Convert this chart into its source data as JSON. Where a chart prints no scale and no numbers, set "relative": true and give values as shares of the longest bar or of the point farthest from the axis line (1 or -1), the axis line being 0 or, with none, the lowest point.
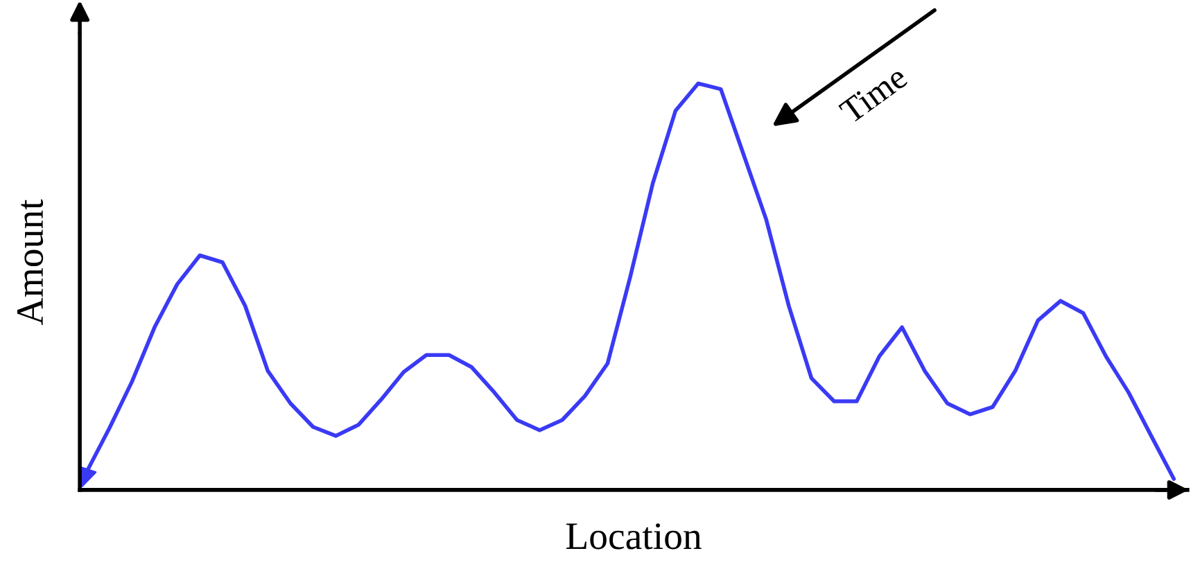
{
  "chart_data": {
    "type": "line",
    "relative": true,
    "xlabel": "Location",
    "ylabel": "Amount",
    "annotations": [
      "Time"
    ],
    "categories": [
      null,
      null,
      null,
      null,
      null,
      null,
      null,
      null,
      null,
      null,
      null,
      null,
      null,
      null,
      null,
      null,
      null,
      null,
      null,
      null,
      null,
      null,
      null,
      null,
      null,
      null,
      null,
      null,
      null,
      null,
      null,
      null,
      null,
      null,
      null,
      null,
      null,
      null,
      null,
      null,
      null,
      null,
      null,
      null,
      null,
      null,
      null,
      null,
      null
    ],
    "series": [
      {
        "color": "#3a3af5",
        "values": [
          0.044,
          0.151,
          0.266,
          0.4,
          0.506,
          0.577,
          0.56,
          0.453,
          0.293,
          0.213,
          0.155,
          0.133,
          0.16,
          0.222,
          0.29,
          0.332,
          0.332,
          0.302,
          0.24,
          0.172,
          0.147,
          0.172,
          0.231,
          0.311,
          0.524,
          0.755,
          0.933,
          1.0,
          0.986,
          0.826,
          0.666,
          0.453,
          0.275,
          0.218,
          0.218,
          0.329,
          0.4,
          0.293,
          0.213,
          0.186,
          0.204,
          0.293,
          0.417,
          0.465,
          0.435,
          0.329,
          0.24,
          0.133,
          0.027
        ]
      }
    ],
    "grid": false,
    "legend": false,
    "marker": "none",
    "line_style": "solid"
  }
}
